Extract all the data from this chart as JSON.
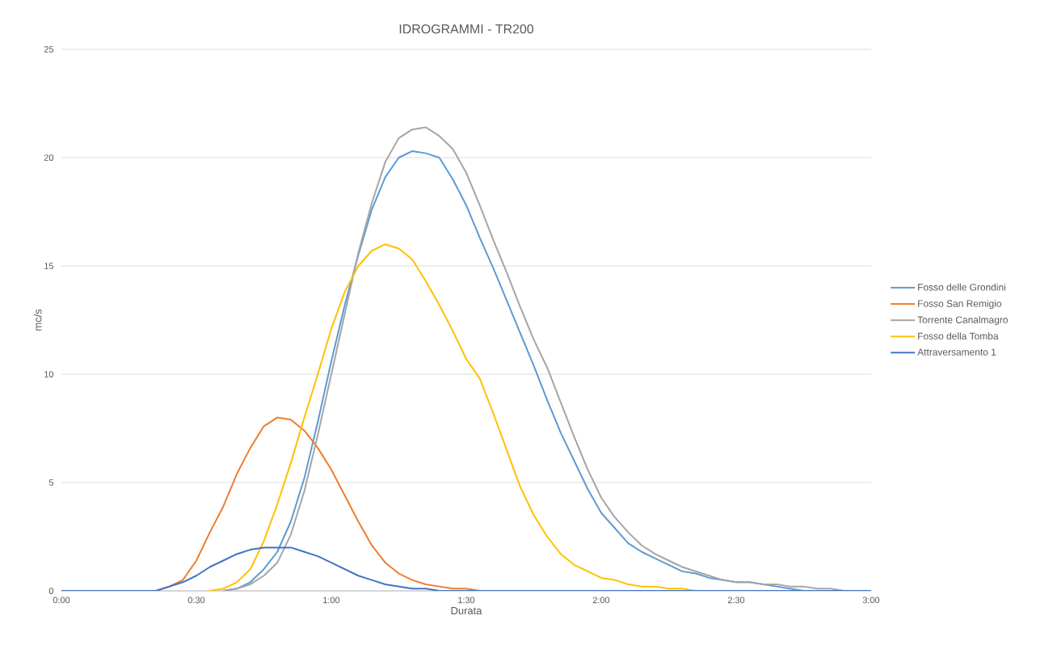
{
  "chart_data": {
    "type": "line",
    "title": "IDROGRAMMI - TR200",
    "xlabel": "Durata",
    "ylabel": "mc/s",
    "x": [
      0,
      0.05,
      0.1,
      0.15,
      0.2,
      0.25,
      0.3,
      0.35,
      0.4,
      0.45,
      0.5,
      0.55,
      0.6,
      0.65,
      0.7,
      0.75,
      0.8,
      0.85,
      0.9,
      0.95,
      1.0,
      1.05,
      1.1,
      1.15,
      1.2,
      1.25,
      1.3,
      1.35,
      1.4,
      1.45,
      1.5,
      1.55,
      1.6,
      1.65,
      1.7,
      1.75,
      1.8,
      1.85,
      1.9,
      1.95,
      2.0,
      2.05,
      2.1,
      2.15,
      2.2,
      2.25,
      2.3,
      2.35,
      2.4,
      2.45,
      2.5,
      2.55,
      2.6,
      2.65,
      2.7,
      2.75,
      2.8,
      2.85,
      2.9,
      2.95,
      3.0
    ],
    "series": [
      {
        "name": "Fosso delle Grondini",
        "color": "#5b9bd5",
        "values": [
          null,
          null,
          null,
          null,
          null,
          null,
          null,
          null,
          null,
          null,
          null,
          null,
          0,
          0.1,
          0.4,
          1.0,
          1.8,
          3.2,
          5.2,
          7.8,
          10.6,
          13.2,
          15.5,
          17.6,
          19.1,
          20.0,
          20.3,
          20.2,
          20.0,
          19.0,
          17.8,
          16.3,
          14.9,
          13.4,
          11.9,
          10.4,
          8.8,
          7.3,
          6.0,
          4.7,
          3.6,
          2.9,
          2.2,
          1.8,
          1.5,
          1.2,
          0.9,
          0.8,
          0.6,
          0.5,
          0.4,
          0.4,
          0.3,
          0.2,
          0.1,
          0,
          null,
          null,
          null,
          null,
          null
        ]
      },
      {
        "name": "Fosso San Remigio",
        "color": "#ed7d31",
        "values": [
          null,
          null,
          null,
          null,
          null,
          null,
          null,
          0,
          0.2,
          0.5,
          1.4,
          2.7,
          3.9,
          5.4,
          6.6,
          7.6,
          8.0,
          7.9,
          7.4,
          6.6,
          5.6,
          4.4,
          3.2,
          2.1,
          1.3,
          0.8,
          0.5,
          0.3,
          0.2,
          0.1,
          0.1,
          0,
          null,
          null,
          null,
          null,
          null,
          null,
          null,
          null,
          null,
          null,
          null,
          null,
          null,
          null,
          null,
          null,
          null,
          null,
          null,
          null,
          null,
          null,
          null,
          null,
          null,
          null,
          null,
          null,
          null
        ]
      },
      {
        "name": "Torrente Canalmagro",
        "color": "#a5a5a5",
        "values": [
          null,
          null,
          null,
          null,
          null,
          null,
          null,
          null,
          null,
          null,
          null,
          null,
          0,
          0.1,
          0.3,
          0.7,
          1.3,
          2.6,
          4.6,
          7.2,
          10.0,
          12.8,
          15.6,
          17.9,
          19.8,
          20.9,
          21.3,
          21.4,
          21.0,
          20.4,
          19.3,
          17.8,
          16.2,
          14.7,
          13.1,
          11.6,
          10.3,
          8.7,
          7.1,
          5.6,
          4.3,
          3.4,
          2.7,
          2.1,
          1.7,
          1.4,
          1.1,
          0.9,
          0.7,
          0.5,
          0.4,
          0.4,
          0.3,
          0.3,
          0.2,
          0.2,
          0.1,
          0.1,
          0,
          null,
          null
        ]
      },
      {
        "name": "Fosso della Tomba",
        "color": "#ffc000",
        "values": [
          null,
          null,
          null,
          null,
          null,
          null,
          null,
          null,
          null,
          null,
          null,
          0,
          0.1,
          0.4,
          1.0,
          2.3,
          4.0,
          5.9,
          8.0,
          10.0,
          12.1,
          13.8,
          15.0,
          15.7,
          16.0,
          15.8,
          15.3,
          14.3,
          13.2,
          12.0,
          10.7,
          9.8,
          8.2,
          6.5,
          4.8,
          3.5,
          2.5,
          1.7,
          1.2,
          0.9,
          0.6,
          0.5,
          0.3,
          0.2,
          0.2,
          0.1,
          0.1,
          0,
          null,
          null,
          null,
          null,
          null,
          null,
          null,
          null,
          null,
          null,
          null,
          null,
          null
        ]
      },
      {
        "name": "Attraversamento 1",
        "color": "#4472c4",
        "values": [
          0,
          0,
          0,
          0,
          0,
          0,
          0,
          0,
          0.2,
          0.4,
          0.7,
          1.1,
          1.4,
          1.7,
          1.9,
          2.0,
          2.0,
          2.0,
          1.8,
          1.6,
          1.3,
          1.0,
          0.7,
          0.5,
          0.3,
          0.2,
          0.1,
          0.1,
          0,
          0,
          0,
          0,
          0,
          0,
          0,
          0,
          0,
          0,
          0,
          0,
          0,
          0,
          0,
          0,
          0,
          0,
          0,
          0,
          0,
          0,
          0,
          0,
          0,
          0,
          0,
          0,
          0,
          0,
          0,
          0,
          0
        ]
      }
    ],
    "xlim": [
      0,
      3
    ],
    "xticks": [
      {
        "value": 0,
        "label": "0:00"
      },
      {
        "value": 0.5,
        "label": "0:30"
      },
      {
        "value": 1,
        "label": "1:00"
      },
      {
        "value": 1.5,
        "label": "1:30"
      },
      {
        "value": 2,
        "label": "2:00"
      },
      {
        "value": 2.5,
        "label": "2:30"
      },
      {
        "value": 3,
        "label": "3:00"
      }
    ],
    "ylim": [
      0,
      25
    ],
    "yticks": [
      0,
      5,
      10,
      15,
      20,
      25
    ],
    "grid": "y",
    "legend": "right"
  }
}
